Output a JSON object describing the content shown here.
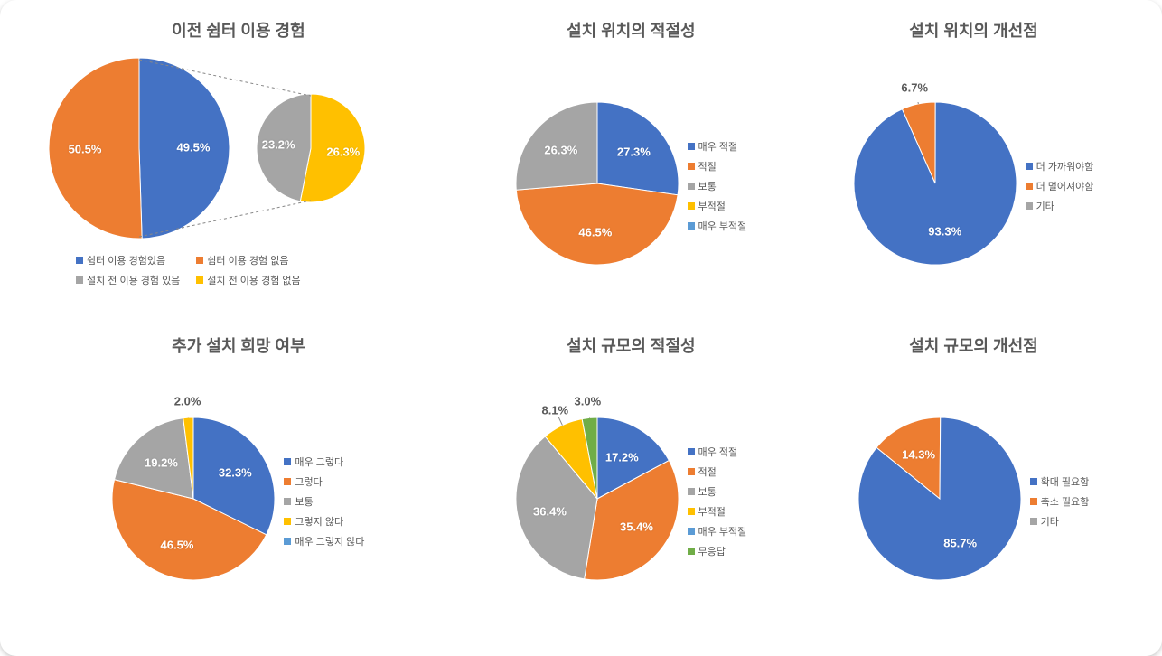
{
  "colors": {
    "blue": "#4472c4",
    "orange": "#ed7d31",
    "gray": "#a5a5a5",
    "yellow": "#ffc000",
    "teal": "#5b9bd5",
    "green": "#70ad47",
    "title": "#595959",
    "labelWhite": "#ffffff",
    "background": "#ffffff"
  },
  "typography": {
    "titleFontSize": 18,
    "labelFontSize": 13,
    "legendFontSize": 11,
    "fontFamily": "Malgun Gothic, Arial, sans-serif"
  },
  "charts": {
    "experience": {
      "title": "이전 쉼터 이용 경험",
      "type": "pie_of_pie",
      "main": {
        "radius": 100,
        "slices": [
          {
            "label": "쉼터 이용 경험있음",
            "value": 49.5,
            "color": "#4472c4",
            "labelText": "49.5%"
          },
          {
            "label": "쉼터 이용 경험 없음",
            "value": 50.5,
            "color": "#ed7d31",
            "labelText": "50.5%"
          }
        ]
      },
      "sub": {
        "radius": 60,
        "slices": [
          {
            "label": "설치 전 이용 경험 없음",
            "value": 26.3,
            "color": "#ffc000",
            "labelText": "26.3%"
          },
          {
            "label": "설치 전 이용 경험 있음",
            "value": 23.2,
            "color": "#a5a5a5",
            "labelText": "23.2%"
          }
        ]
      },
      "legend": [
        {
          "color": "#4472c4",
          "text": "쉼터 이용 경험있음"
        },
        {
          "color": "#ed7d31",
          "text": "쉼터 이용 경험 없음"
        },
        {
          "color": "#a5a5a5",
          "text": "설치 전 이용 경험 있음"
        },
        {
          "color": "#ffc000",
          "text": "설치 전 이용 경험 없음"
        }
      ]
    },
    "locationAppropriate": {
      "title": "설치 위치의 적절성",
      "type": "pie",
      "radius": 90,
      "slices": [
        {
          "label": "매우 적절",
          "value": 27.3,
          "color": "#4472c4",
          "labelText": "27.3%"
        },
        {
          "label": "적절",
          "value": 46.5,
          "color": "#ed7d31",
          "labelText": "46.5%"
        },
        {
          "label": "보통",
          "value": 26.3,
          "color": "#a5a5a5",
          "labelText": "26.3%"
        }
      ],
      "legend": [
        {
          "color": "#4472c4",
          "text": "매우 적절"
        },
        {
          "color": "#ed7d31",
          "text": "적절"
        },
        {
          "color": "#a5a5a5",
          "text": "보통"
        },
        {
          "color": "#ffc000",
          "text": "부적절"
        },
        {
          "color": "#5b9bd5",
          "text": "매우 부적절"
        }
      ]
    },
    "locationImprove": {
      "title": "설치 위치의 개선점",
      "type": "pie",
      "radius": 90,
      "slices": [
        {
          "label": "더 멀어져야함",
          "value": 6.7,
          "color": "#ed7d31",
          "labelText": "6.7%",
          "outside": true
        },
        {
          "label": "더 가까워야함",
          "value": 93.3,
          "color": "#4472c4",
          "labelText": "93.3%"
        }
      ],
      "legend": [
        {
          "color": "#4472c4",
          "text": "더 가까워야함"
        },
        {
          "color": "#ed7d31",
          "text": "더 멀어져야함"
        },
        {
          "color": "#a5a5a5",
          "text": "기타"
        }
      ]
    },
    "additionalInstall": {
      "title": "추가 설치 희망 여부",
      "type": "pie",
      "radius": 90,
      "slices": [
        {
          "label": "매우 그렇다",
          "value": 32.3,
          "color": "#4472c4",
          "labelText": "32.3%"
        },
        {
          "label": "그렇다",
          "value": 46.5,
          "color": "#ed7d31",
          "labelText": "46.5%"
        },
        {
          "label": "보통",
          "value": 19.2,
          "color": "#a5a5a5",
          "labelText": "19.2%"
        },
        {
          "label": "그렇지 않다",
          "value": 2.0,
          "color": "#ffc000",
          "labelText": "2.0%",
          "outside": true
        }
      ],
      "legend": [
        {
          "color": "#4472c4",
          "text": "매우 그렇다"
        },
        {
          "color": "#ed7d31",
          "text": "그렇다"
        },
        {
          "color": "#a5a5a5",
          "text": "보통"
        },
        {
          "color": "#ffc000",
          "text": "그렇지 않다"
        },
        {
          "color": "#5b9bd5",
          "text": "매우 그렇지 않다"
        }
      ]
    },
    "scaleAppropriate": {
      "title": "설치 규모의 적절성",
      "type": "pie",
      "radius": 90,
      "slices": [
        {
          "label": "매우 적절",
          "value": 17.2,
          "color": "#4472c4",
          "labelText": "17.2%"
        },
        {
          "label": "적절",
          "value": 35.4,
          "color": "#ed7d31",
          "labelText": "35.4%"
        },
        {
          "label": "보통",
          "value": 36.4,
          "color": "#a5a5a5",
          "labelText": "36.4%"
        },
        {
          "label": "부적절",
          "value": 8.1,
          "color": "#ffc000",
          "labelText": "8.1%",
          "outside": true
        },
        {
          "label": "무응답",
          "value": 3.0,
          "color": "#70ad47",
          "labelText": "3.0%",
          "outside": true
        }
      ],
      "legend": [
        {
          "color": "#4472c4",
          "text": "매우 적절"
        },
        {
          "color": "#ed7d31",
          "text": "적절"
        },
        {
          "color": "#a5a5a5",
          "text": "보통"
        },
        {
          "color": "#ffc000",
          "text": "부적절"
        },
        {
          "color": "#5b9bd5",
          "text": "매우 부적절"
        },
        {
          "color": "#70ad47",
          "text": "무응답"
        }
      ]
    },
    "scaleImprove": {
      "title": "설치 규모의 개선점",
      "type": "pie",
      "radius": 90,
      "slices": [
        {
          "label": "축소 필요함",
          "value": 14.3,
          "color": "#ed7d31",
          "labelText": "14.3%"
        },
        {
          "label": "확대 필요함",
          "value": 85.7,
          "color": "#4472c4",
          "labelText": "85.7%"
        }
      ],
      "legend": [
        {
          "color": "#4472c4",
          "text": "확대 필요함"
        },
        {
          "color": "#ed7d31",
          "text": "축소 필요함"
        },
        {
          "color": "#a5a5a5",
          "text": "기타"
        }
      ]
    }
  }
}
